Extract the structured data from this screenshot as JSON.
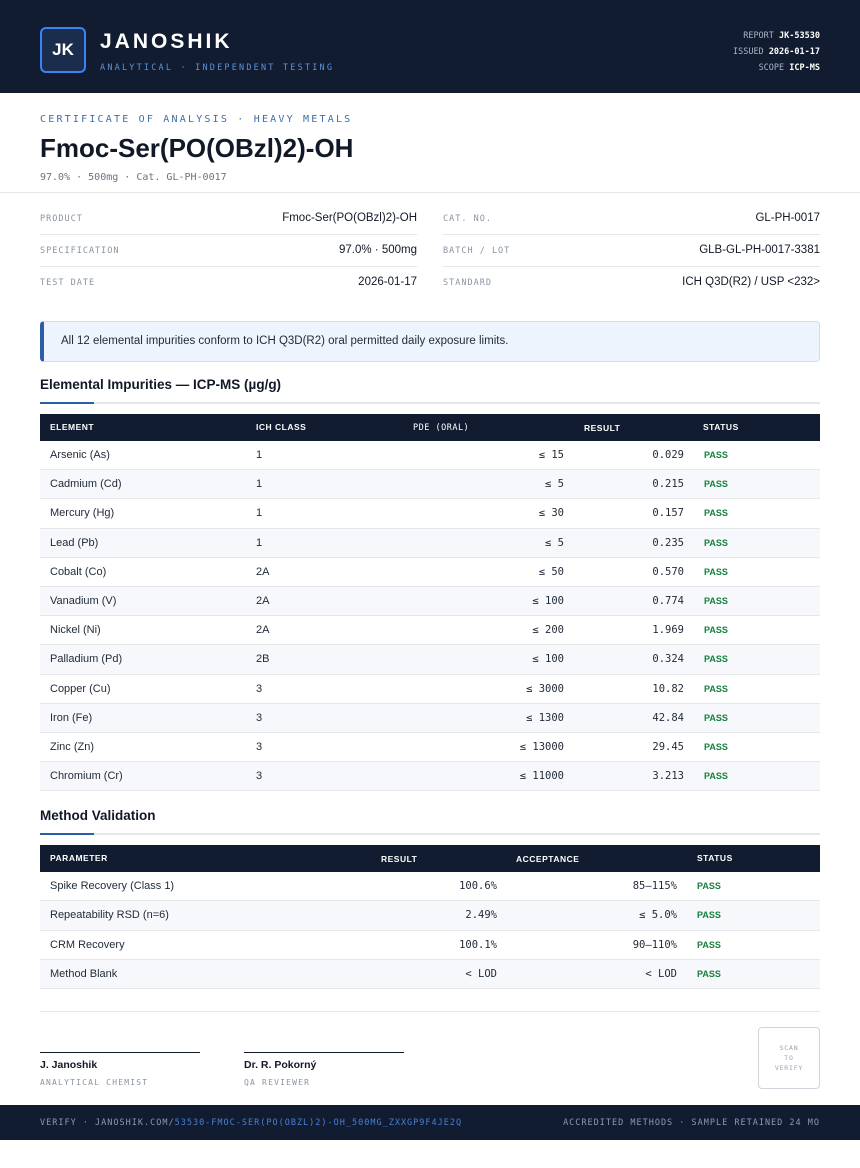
{
  "header": {
    "logo_text": "JK",
    "brand": "JANOSHIK",
    "tagline": "ANALYTICAL · INDEPENDENT TESTING",
    "report_label": "REPORT",
    "report_value": "JK-53530",
    "issued_label": "ISSUED",
    "issued_value": "2026-01-17",
    "scope_label": "SCOPE",
    "scope_value": "ICP-MS"
  },
  "title_block": {
    "kicker": "CERTIFICATE OF ANALYSIS · HEAVY METALS",
    "title": "Fmoc-Ser(PO(OBzl)2)-OH",
    "subline": "97.0% · 500mg  ·  Cat. GL-PH-0017"
  },
  "info": {
    "left": [
      {
        "label": "PRODUCT",
        "value": "Fmoc-Ser(PO(OBzl)2)-OH"
      },
      {
        "label": "SPECIFICATION",
        "value": "97.0% · 500mg"
      },
      {
        "label": "TEST DATE",
        "value": "2026-01-17"
      }
    ],
    "right": [
      {
        "label": "CAT. NO.",
        "value": "GL-PH-0017"
      },
      {
        "label": "BATCH / LOT",
        "value": "GLB-GL-PH-0017-3381"
      },
      {
        "label": "STANDARD",
        "value": "ICH Q3D(R2) / USP <232>"
      }
    ]
  },
  "notice": "All 12 elemental impurities conform to ICH Q3D(R2) oral permitted daily exposure limits.",
  "impurities": {
    "title": "Elemental Impurities — ICP-MS (µg/g)",
    "headers": {
      "element": "ELEMENT",
      "ich_class": "ICH CLASS",
      "pde": "PDE (ORAL)",
      "result": "RESULT",
      "status": "STATUS"
    },
    "rows": [
      {
        "element": "Arsenic (As)",
        "ich_class": "1",
        "pde": "≤ 15",
        "result": "0.029",
        "status": "PASS"
      },
      {
        "element": "Cadmium (Cd)",
        "ich_class": "1",
        "pde": "≤ 5",
        "result": "0.215",
        "status": "PASS"
      },
      {
        "element": "Mercury (Hg)",
        "ich_class": "1",
        "pde": "≤ 30",
        "result": "0.157",
        "status": "PASS"
      },
      {
        "element": "Lead (Pb)",
        "ich_class": "1",
        "pde": "≤ 5",
        "result": "0.235",
        "status": "PASS"
      },
      {
        "element": "Cobalt (Co)",
        "ich_class": "2A",
        "pde": "≤ 50",
        "result": "0.570",
        "status": "PASS"
      },
      {
        "element": "Vanadium (V)",
        "ich_class": "2A",
        "pde": "≤ 100",
        "result": "0.774",
        "status": "PASS"
      },
      {
        "element": "Nickel (Ni)",
        "ich_class": "2A",
        "pde": "≤ 200",
        "result": "1.969",
        "status": "PASS"
      },
      {
        "element": "Palladium (Pd)",
        "ich_class": "2B",
        "pde": "≤ 100",
        "result": "0.324",
        "status": "PASS"
      },
      {
        "element": "Copper (Cu)",
        "ich_class": "3",
        "pde": "≤ 3000",
        "result": "10.82",
        "status": "PASS"
      },
      {
        "element": "Iron (Fe)",
        "ich_class": "3",
        "pde": "≤ 1300",
        "result": "42.84",
        "status": "PASS"
      },
      {
        "element": "Zinc (Zn)",
        "ich_class": "3",
        "pde": "≤ 13000",
        "result": "29.45",
        "status": "PASS"
      },
      {
        "element": "Chromium (Cr)",
        "ich_class": "3",
        "pde": "≤ 11000",
        "result": "3.213",
        "status": "PASS"
      }
    ]
  },
  "validation": {
    "title": "Method Validation",
    "headers": {
      "parameter": "PARAMETER",
      "result": "RESULT",
      "acceptance": "ACCEPTANCE",
      "status": "STATUS"
    },
    "rows": [
      {
        "parameter": "Spike Recovery (Class 1)",
        "result": "100.6%",
        "acceptance": "85–115%",
        "status": "PASS"
      },
      {
        "parameter": "Repeatability RSD (n=6)",
        "result": "2.49%",
        "acceptance": "≤ 5.0%",
        "status": "PASS"
      },
      {
        "parameter": "CRM Recovery",
        "result": "100.1%",
        "acceptance": "90–110%",
        "status": "PASS"
      },
      {
        "parameter": "Method Blank",
        "result": "< LOD",
        "acceptance": "< LOD",
        "status": "PASS"
      }
    ]
  },
  "signatures": [
    {
      "name": "J. Janoshik",
      "role": "ANALYTICAL CHEMIST"
    },
    {
      "name": "Dr. R. Pokorný",
      "role": "QA REVIEWER"
    }
  ],
  "scan": {
    "line1": "SCAN",
    "line2": "TO",
    "line3": "VERIFY"
  },
  "footer": {
    "verify_prefix": "VERIFY · JANOSHIK.COM/",
    "verify_hash": "53530-FMOC-SER(PO(OBZL)2)-OH_500MG_ZXXGP9F4JE2Q",
    "right": "ACCREDITED METHODS · SAMPLE RETAINED 24 MO"
  }
}
